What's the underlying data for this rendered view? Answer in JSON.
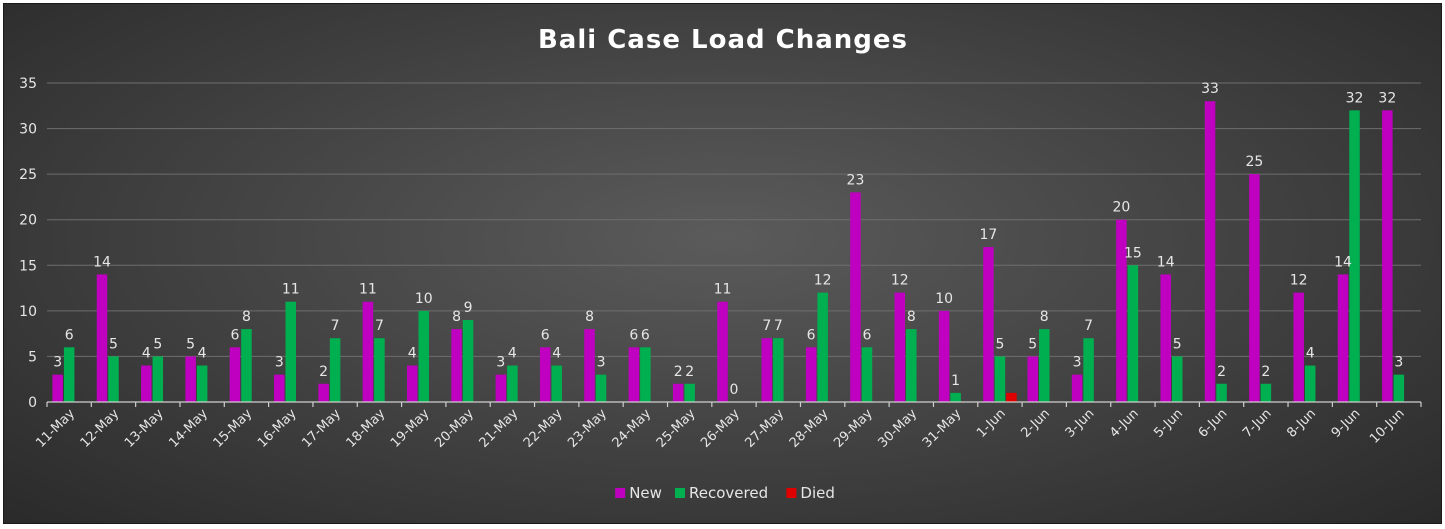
{
  "chart_data": {
    "type": "bar",
    "title": "Bali Case Load Changes",
    "xlabel": "",
    "ylabel": "",
    "ylim": [
      0,
      35
    ],
    "yticks": [
      0,
      5,
      10,
      15,
      20,
      25,
      30,
      35
    ],
    "grid": true,
    "legend_position": "bottom",
    "categories": [
      "11-May",
      "12-May",
      "13-May",
      "14-May",
      "15-May",
      "16-May",
      "17-May",
      "18-May",
      "19-May",
      "20-May",
      "21-May",
      "22-May",
      "23-May",
      "24-May",
      "25-May",
      "26-May",
      "27-May",
      "28-May",
      "29-May",
      "30-May",
      "31-May",
      "1-Jun",
      "2-Jun",
      "3-Jun",
      "4-Jun",
      "5-Jun",
      "6-Jun",
      "7-Jun",
      "8-Jun",
      "9-Jun",
      "10-Jun"
    ],
    "series": [
      {
        "name": "New",
        "color": "#c000c0",
        "values": [
          3,
          14,
          4,
          5,
          6,
          3,
          2,
          11,
          4,
          8,
          3,
          6,
          8,
          6,
          2,
          11,
          7,
          6,
          23,
          12,
          10,
          17,
          5,
          3,
          20,
          14,
          33,
          25,
          12,
          14,
          32
        ],
        "labels": [
          "3",
          "14",
          "4",
          "5",
          "6",
          "3",
          "2",
          "11",
          "4",
          "8",
          "3",
          "6",
          "8",
          "6",
          "2",
          "11",
          "7",
          "6",
          "23",
          "12",
          "10",
          "17",
          "5",
          "3",
          "20",
          "14",
          "33",
          "25",
          "12",
          "14",
          "32"
        ]
      },
      {
        "name": "Recovered",
        "color": "#00b050",
        "values": [
          6,
          5,
          5,
          4,
          8,
          11,
          7,
          7,
          10,
          9,
          4,
          4,
          3,
          6,
          2,
          0,
          7,
          12,
          6,
          8,
          1,
          5,
          8,
          7,
          15,
          5,
          2,
          2,
          4,
          32,
          3
        ],
        "labels": [
          "6",
          "5",
          "5",
          "4",
          "8",
          "11",
          "7",
          "7",
          "10",
          "9",
          "4",
          "4",
          "3",
          "6",
          "2",
          "0",
          "7",
          "12",
          "6",
          "8",
          "1",
          "5",
          "8",
          "7",
          "15",
          "5",
          "2",
          "2",
          "4",
          "32",
          "3"
        ]
      },
      {
        "name": "Died",
        "color": "#e00000",
        "values": [
          0,
          0,
          0,
          0,
          0,
          0,
          0,
          0,
          0,
          0,
          0,
          0,
          0,
          0,
          0,
          0,
          0,
          0,
          0,
          0,
          0,
          1,
          0,
          0,
          0,
          0,
          0,
          0,
          0,
          0,
          0
        ],
        "labels": [
          "",
          "",
          "",
          "",
          "",
          "",
          "",
          "",
          "",
          "",
          "",
          "",
          "",
          "",
          "",
          "",
          "",
          "",
          "",
          "",
          "",
          "",
          "",
          "",
          "",
          "",
          "",
          "",
          "",
          "",
          ""
        ]
      }
    ]
  }
}
